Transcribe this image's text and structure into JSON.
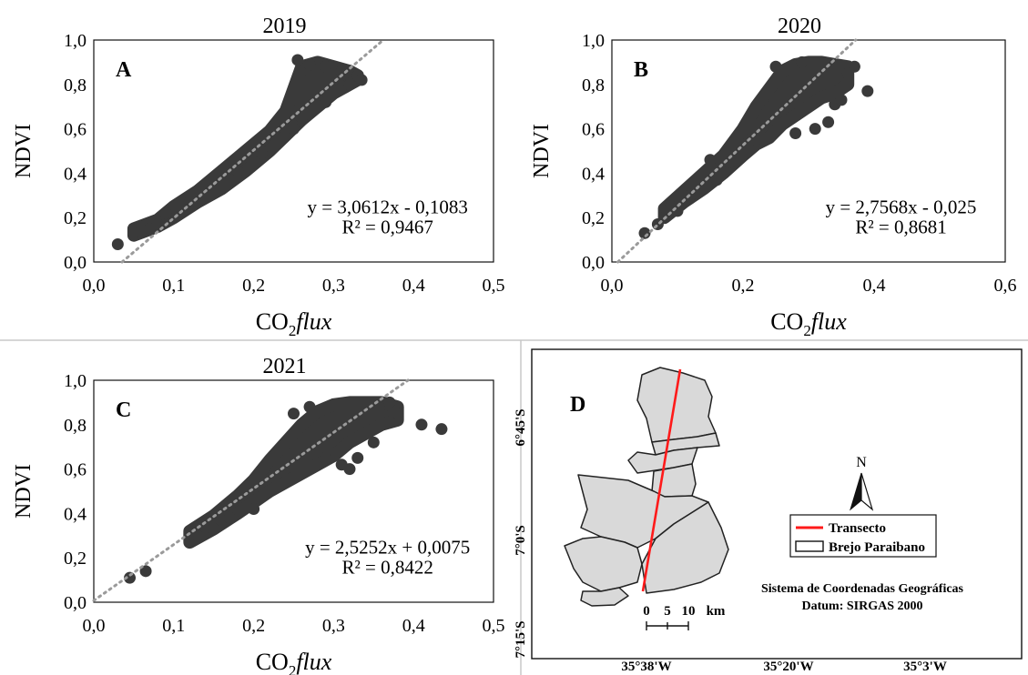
{
  "chart_data": [
    {
      "type": "scatter",
      "panel_letter": "A",
      "title": "2019",
      "xlabel": "CO2flux",
      "ylabel": "NDVI",
      "xlim": [
        0.0,
        0.5
      ],
      "ylim": [
        0.0,
        1.0
      ],
      "xticks": [
        "0,0",
        "0,1",
        "0,2",
        "0,3",
        "0,4",
        "0,5"
      ],
      "yticks": [
        "0,0",
        "0,2",
        "0,4",
        "0,6",
        "0,8",
        "1,0"
      ],
      "equation": "y = 3,0612x - 0,1083",
      "r2": "R² = 0,9467",
      "trend": {
        "slope": 3.0612,
        "intercept": -0.1083
      },
      "band": {
        "x": [
          0.05,
          0.08,
          0.1,
          0.13,
          0.16,
          0.19,
          0.22,
          0.24,
          0.26,
          0.28,
          0.3,
          0.32,
          0.33
        ],
        "lo": [
          0.12,
          0.16,
          0.2,
          0.27,
          0.33,
          0.41,
          0.5,
          0.57,
          0.64,
          0.7,
          0.76,
          0.8,
          0.82
        ],
        "hi": [
          0.15,
          0.19,
          0.25,
          0.32,
          0.41,
          0.5,
          0.59,
          0.68,
          0.88,
          0.9,
          0.88,
          0.86,
          0.84
        ]
      },
      "points": [
        [
          0.03,
          0.08
        ],
        [
          0.05,
          0.13
        ],
        [
          0.07,
          0.15
        ],
        [
          0.08,
          0.17
        ],
        [
          0.09,
          0.22
        ],
        [
          0.12,
          0.27
        ],
        [
          0.15,
          0.33
        ],
        [
          0.18,
          0.41
        ],
        [
          0.21,
          0.49
        ],
        [
          0.25,
          0.6
        ],
        [
          0.255,
          0.91
        ],
        [
          0.27,
          0.89
        ],
        [
          0.29,
          0.88
        ],
        [
          0.31,
          0.86
        ],
        [
          0.33,
          0.84
        ],
        [
          0.335,
          0.82
        ],
        [
          0.32,
          0.8
        ],
        [
          0.29,
          0.72
        ],
        [
          0.26,
          0.65
        ]
      ]
    },
    {
      "type": "scatter",
      "panel_letter": "B",
      "title": "2020",
      "xlabel": "CO2flux",
      "ylabel": "NDVI",
      "xlim": [
        0.0,
        0.6
      ],
      "ylim": [
        0.0,
        1.0
      ],
      "xticks": [
        "0,0",
        "0,2",
        "0,4",
        "0,6"
      ],
      "yticks": [
        "0,0",
        "0,2",
        "0,4",
        "0,6",
        "0,8",
        "1,0"
      ],
      "equation": "y = 2,7568x - 0,025",
      "r2": "R² = 0,8681",
      "trend": {
        "slope": 2.7568,
        "intercept": -0.025
      },
      "band": {
        "x": [
          0.08,
          0.11,
          0.14,
          0.17,
          0.2,
          0.22,
          0.24,
          0.26,
          0.28,
          0.3,
          0.32,
          0.34,
          0.36
        ],
        "lo": [
          0.2,
          0.27,
          0.33,
          0.4,
          0.48,
          0.53,
          0.56,
          0.62,
          0.66,
          0.7,
          0.74,
          0.76,
          0.8
        ],
        "hi": [
          0.24,
          0.32,
          0.4,
          0.48,
          0.6,
          0.7,
          0.78,
          0.86,
          0.89,
          0.9,
          0.9,
          0.89,
          0.88
        ]
      },
      "points": [
        [
          0.05,
          0.13
        ],
        [
          0.07,
          0.17
        ],
        [
          0.08,
          0.2
        ],
        [
          0.09,
          0.25
        ],
        [
          0.1,
          0.23
        ],
        [
          0.12,
          0.3
        ],
        [
          0.13,
          0.33
        ],
        [
          0.15,
          0.46
        ],
        [
          0.16,
          0.37
        ],
        [
          0.18,
          0.45
        ],
        [
          0.22,
          0.55
        ],
        [
          0.25,
          0.88
        ],
        [
          0.28,
          0.58
        ],
        [
          0.29,
          0.9
        ],
        [
          0.31,
          0.6
        ],
        [
          0.33,
          0.63
        ],
        [
          0.34,
          0.71
        ],
        [
          0.35,
          0.73
        ],
        [
          0.37,
          0.88
        ],
        [
          0.36,
          0.85
        ],
        [
          0.39,
          0.77
        ]
      ]
    },
    {
      "type": "scatter",
      "panel_letter": "C",
      "title": "2021",
      "xlabel": "CO2flux",
      "ylabel": "NDVI",
      "xlim": [
        0.0,
        0.5
      ],
      "ylim": [
        0.0,
        1.0
      ],
      "xticks": [
        "0,0",
        "0,1",
        "0,2",
        "0,3",
        "0,4",
        "0,5"
      ],
      "yticks": [
        "0,0",
        "0,2",
        "0,4",
        "0,6",
        "0,8",
        "1,0"
      ],
      "equation": "y = 2,5252x + 0,0075",
      "r2": "R² = 0,8422",
      "trend": {
        "slope": 2.5252,
        "intercept": 0.0075
      },
      "band": {
        "x": [
          0.12,
          0.15,
          0.18,
          0.2,
          0.22,
          0.24,
          0.26,
          0.28,
          0.3,
          0.32,
          0.34,
          0.36,
          0.38
        ],
        "lo": [
          0.27,
          0.33,
          0.4,
          0.45,
          0.5,
          0.54,
          0.58,
          0.62,
          0.66,
          0.72,
          0.76,
          0.8,
          0.82
        ],
        "hi": [
          0.32,
          0.39,
          0.48,
          0.55,
          0.64,
          0.72,
          0.8,
          0.86,
          0.89,
          0.9,
          0.9,
          0.9,
          0.88
        ]
      },
      "points": [
        [
          0.045,
          0.11
        ],
        [
          0.065,
          0.14
        ],
        [
          0.12,
          0.27
        ],
        [
          0.13,
          0.3
        ],
        [
          0.15,
          0.33
        ],
        [
          0.17,
          0.38
        ],
        [
          0.2,
          0.42
        ],
        [
          0.25,
          0.85
        ],
        [
          0.27,
          0.88
        ],
        [
          0.29,
          0.65
        ],
        [
          0.31,
          0.62
        ],
        [
          0.33,
          0.65
        ],
        [
          0.32,
          0.6
        ],
        [
          0.35,
          0.72
        ],
        [
          0.37,
          0.9
        ],
        [
          0.38,
          0.85
        ],
        [
          0.41,
          0.8
        ],
        [
          0.435,
          0.78
        ]
      ]
    }
  ],
  "map": {
    "panel_letter": "D",
    "lat_labels": [
      "6°45'S",
      "7°0'S",
      "7°15'S"
    ],
    "lon_labels": [
      "35°38'W",
      "35°20'W",
      "35°3'W"
    ],
    "north": "N",
    "legend": {
      "transect": "Transecto",
      "region": "Brejo Paraibano"
    },
    "colors": {
      "transect": "#ff1a1a",
      "region_fill": "#d9d9d9",
      "outline": "#222222"
    },
    "scale": {
      "ticks": [
        "0",
        "5",
        "10"
      ],
      "unit": "km"
    },
    "crs_line1": "Sistema de Coordenadas Geográficas",
    "crs_line2": "Datum: SIRGAS 2000"
  },
  "colors": {
    "points": "#3a3a3a",
    "trend": "#9a9a9a"
  }
}
